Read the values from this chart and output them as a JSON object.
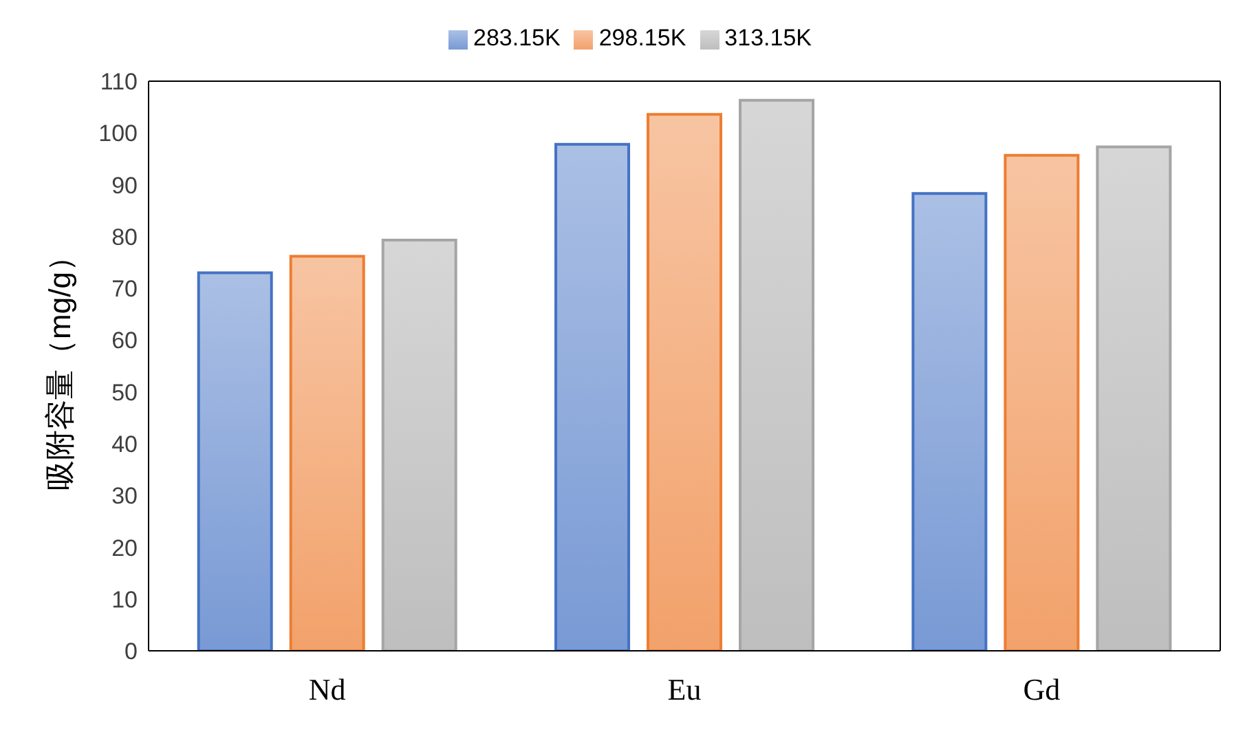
{
  "chart_data": {
    "type": "bar",
    "ylabel": "吸附容量（mg/g）",
    "categories": [
      "Nd",
      "Eu",
      "Gd"
    ],
    "series": [
      {
        "name": "283.15K",
        "color": "#4472c4",
        "values": [
          73.0,
          97.8,
          88.3
        ]
      },
      {
        "name": "298.15K",
        "color": "#ed7d31",
        "values": [
          76.2,
          103.6,
          95.7
        ]
      },
      {
        "name": "313.15K",
        "color": "#a5a5a5",
        "values": [
          79.3,
          106.3,
          97.3
        ]
      }
    ],
    "ylim": [
      0,
      110
    ],
    "yticks": [
      0,
      10,
      20,
      30,
      40,
      50,
      60,
      70,
      80,
      90,
      100,
      110
    ],
    "legend": "top"
  }
}
